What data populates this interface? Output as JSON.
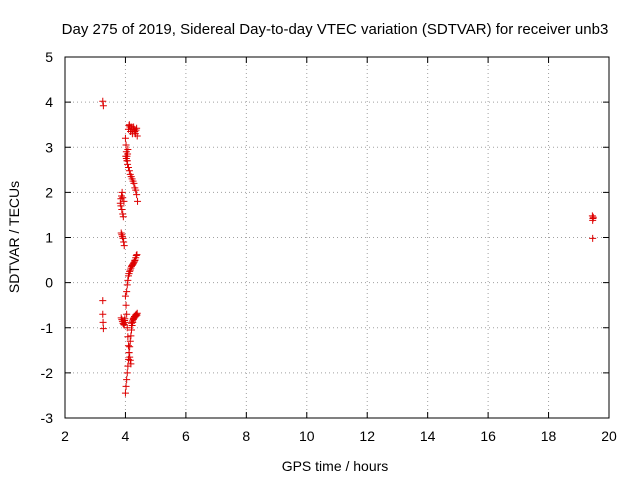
{
  "chart_data": {
    "type": "scatter",
    "title": "Day 275 of 2019, Sidereal Day-to-day VTEC variation (SDTVAR) for receiver unb3",
    "xlabel": "GPS time / hours",
    "ylabel": "SDTVAR / TECUs",
    "xlim": [
      2,
      20
    ],
    "ylim": [
      -3,
      5
    ],
    "xticks": [
      "2",
      "4",
      "6",
      "8",
      "10",
      "12",
      "14",
      "16",
      "18",
      "20"
    ],
    "yticks": [
      "5",
      "4",
      "3",
      "2",
      "1",
      "0",
      "-1",
      "-2",
      "-3"
    ],
    "grid": true,
    "marker": "+",
    "color": "#dd0000",
    "series": [
      {
        "name": "SDTVAR",
        "x": [
          3.25,
          3.27,
          3.25,
          3.25,
          3.26,
          3.27,
          3.83,
          3.85,
          3.87,
          3.89,
          3.91,
          3.85,
          3.88,
          3.91,
          3.93,
          3.95,
          3.86,
          3.88,
          3.9,
          3.92,
          3.94,
          3.96,
          3.86,
          3.88,
          3.9,
          3.92,
          3.94,
          3.96,
          3.98,
          3.97,
          3.99,
          4.0,
          4.02,
          4.03,
          4.05,
          4.06,
          4.07,
          4.08,
          4.1,
          4.12,
          4.13,
          4.15,
          4.17,
          4.19,
          4.21,
          4.23,
          4.25,
          4.27,
          4.29,
          4.31,
          4.33,
          4.35,
          4.37,
          4.39,
          4.01,
          4.03,
          4.05,
          4.07,
          4.1,
          4.13,
          4.16,
          4.19,
          4.22,
          4.25,
          4.28,
          4.31,
          4.34,
          4.37,
          4.4,
          4.04,
          4.06,
          4.08,
          4.1,
          4.12,
          4.14,
          4.16,
          4.18,
          4.2,
          4.22,
          4.24,
          4.26,
          4.28,
          4.3,
          4.32,
          4.34,
          4.36,
          4.38,
          4.0,
          4.02,
          4.04,
          4.06,
          4.08,
          4.1,
          4.12,
          4.14,
          4.16,
          4.18,
          4.2,
          4.22,
          4.24,
          4.26,
          4.28,
          4.3,
          4.33,
          4.36,
          4.39,
          4.0,
          4.02,
          4.04,
          4.06,
          4.08,
          4.1,
          4.12,
          4.14,
          4.16,
          4.18,
          4.2,
          4.23,
          4.26,
          4.29,
          4.32,
          4.35,
          4.38,
          19.45,
          19.47,
          19.46,
          19.48,
          19.46
        ],
        "y": [
          4.02,
          3.92,
          -0.4,
          -0.7,
          -0.88,
          -1.02,
          1.76,
          1.86,
          1.92,
          2.0,
          1.88,
          1.7,
          1.62,
          1.52,
          1.46,
          1.8,
          1.1,
          1.06,
          1.02,
          0.98,
          0.9,
          0.82,
          -0.78,
          -0.82,
          -0.86,
          -0.9,
          -0.92,
          -0.94,
          -0.8,
          -0.84,
          -0.88,
          3.2,
          3.05,
          2.9,
          2.8,
          2.7,
          2.85,
          2.95,
          3.4,
          3.48,
          3.5,
          3.45,
          3.35,
          3.4,
          3.45,
          3.3,
          3.4,
          3.45,
          3.4,
          3.35,
          3.3,
          3.38,
          3.42,
          3.25,
          2.8,
          2.75,
          2.7,
          2.62,
          2.55,
          2.48,
          2.4,
          2.35,
          2.3,
          2.25,
          2.2,
          2.1,
          2.05,
          1.95,
          1.8,
          -0.2,
          -0.05,
          0.05,
          0.15,
          0.2,
          0.25,
          0.28,
          0.32,
          0.36,
          0.38,
          0.4,
          0.42,
          0.45,
          0.48,
          0.5,
          0.55,
          0.6,
          0.62,
          -2.45,
          -2.3,
          -2.15,
          -2.0,
          -1.85,
          -1.7,
          -1.55,
          -1.42,
          -1.3,
          -1.18,
          -1.05,
          -0.95,
          -0.88,
          -0.82,
          -0.78,
          -0.75,
          -0.72,
          -0.7,
          -0.68,
          -0.3,
          -0.5,
          -0.7,
          -1.0,
          -1.2,
          -1.4,
          -1.55,
          -1.65,
          -1.72,
          -1.8,
          -0.9,
          -0.85,
          -0.8,
          -0.78,
          -0.76,
          -0.74,
          -0.72,
          1.48,
          1.42,
          1.38,
          1.45,
          0.98
        ]
      }
    ]
  }
}
